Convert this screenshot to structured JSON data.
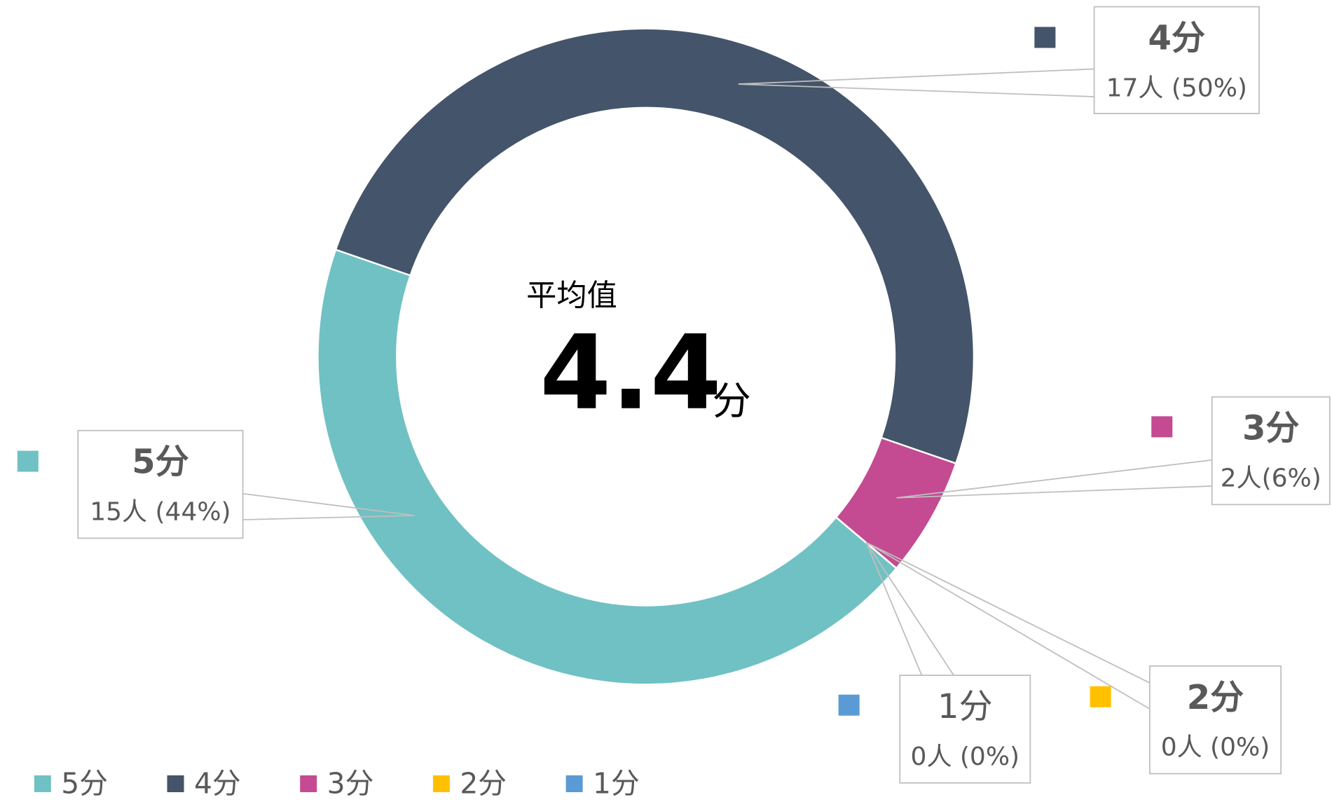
{
  "chart_data": {
    "type": "doughnut",
    "categories": [
      "5分",
      "4分",
      "3分",
      "2分",
      "1分"
    ],
    "values": [
      15,
      17,
      2,
      0,
      0
    ],
    "value_labels": [
      "15人 (44%)",
      "17人 (50%)",
      "2人(6%)",
      "0人 (0%)",
      "0人 (0%)"
    ],
    "colors": [
      "#70c1c3",
      "#44546a",
      "#c44a92",
      "#ffc000",
      "#5b9bd5"
    ],
    "center_title": "平均值",
    "center_value": 4.4,
    "center_unit": "分",
    "legend": "bottom"
  }
}
